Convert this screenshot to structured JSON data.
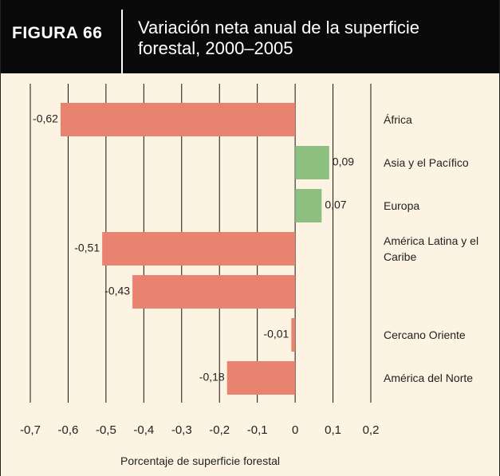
{
  "chart_data": {
    "type": "bar",
    "orientation": "horizontal",
    "figure_label": "FIGURA 66",
    "title": "Variación neta anual de la superficie forestal, 2000–2005",
    "xlabel": "Porcentaje de superficie forestal",
    "categories": [
      "África",
      "Asia y el Pacífico",
      "Europa",
      "América Latina y el Caribe",
      null,
      "Cercano Oriente",
      "América del Norte"
    ],
    "values": [
      -0.62,
      0.09,
      0.07,
      -0.51,
      -0.43,
      -0.01,
      -0.18
    ],
    "value_labels": [
      "-0,62",
      "0,09",
      "0,07",
      "-0,51",
      "-0,43",
      "-0,01",
      "-0,18"
    ],
    "colors": [
      "#e8836f",
      "#8dbf7e",
      "#8dbf7e",
      "#e8836f",
      "#e8836f",
      "#e8836f",
      "#e8836f"
    ],
    "xlim": [
      -0.7,
      0.2
    ],
    "xticks": [
      {
        "value": -0.7,
        "label": "-0,7"
      },
      {
        "value": -0.6,
        "label": "-0,6"
      },
      {
        "value": -0.5,
        "label": "-0,5"
      },
      {
        "value": -0.4,
        "label": "-0,4"
      },
      {
        "value": -0.3,
        "label": "-0,3"
      },
      {
        "value": -0.2,
        "label": "-0,2"
      },
      {
        "value": -0.1,
        "label": "-0,1"
      },
      0,
      {
        "value": 0.1,
        "label": "0,1"
      },
      {
        "value": 0.2,
        "label": "0,2"
      }
    ],
    "grid": true
  }
}
